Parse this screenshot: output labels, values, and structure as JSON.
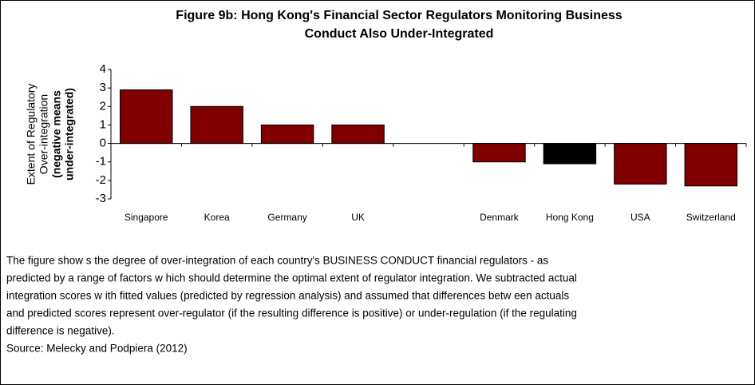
{
  "chart_data": {
    "type": "bar",
    "title": [
      "Figure 9b: Hong Kong's Financial Sector Regulators Monitoring Business",
      "Conduct Also Under-Integrated"
    ],
    "ylabel": [
      "Extent of Regulatory",
      "Over-integration"
    ],
    "ylabel_note": [
      "(negative means",
      "under-integrated)"
    ],
    "categories": [
      "Singapore",
      "Korea",
      "Germany",
      "UK",
      null,
      "Denmark",
      "Hong Kong",
      "USA",
      "Switzerland"
    ],
    "values": [
      2.9,
      2.0,
      1.0,
      1.0,
      null,
      -1.0,
      -1.1,
      -2.2,
      -2.3
    ],
    "colors": [
      "#800000",
      "#800000",
      "#800000",
      "#800000",
      null,
      "#800000",
      "#000000",
      "#800000",
      "#800000"
    ],
    "ylim": [
      -3,
      4
    ],
    "yticks": [
      4,
      3,
      2,
      1,
      0,
      -1,
      -2,
      -3
    ],
    "notes": [
      "The figure show s the degree of over-integration of each country's BUSINESS CONDUCT financial regulators - as",
      "predicted by a range of factors w hich should determine the optimal extent of regulator integration. We subtracted actual",
      "integration scores w ith fitted values (predicted by regression analysis) and assumed that differences betw een actuals",
      "and predicted scores represent over-regulator (if the resulting difference is positive) or under-regulation (if the regulating",
      "difference is negative)."
    ],
    "source": "Source: Melecky and Podpiera (2012)"
  }
}
